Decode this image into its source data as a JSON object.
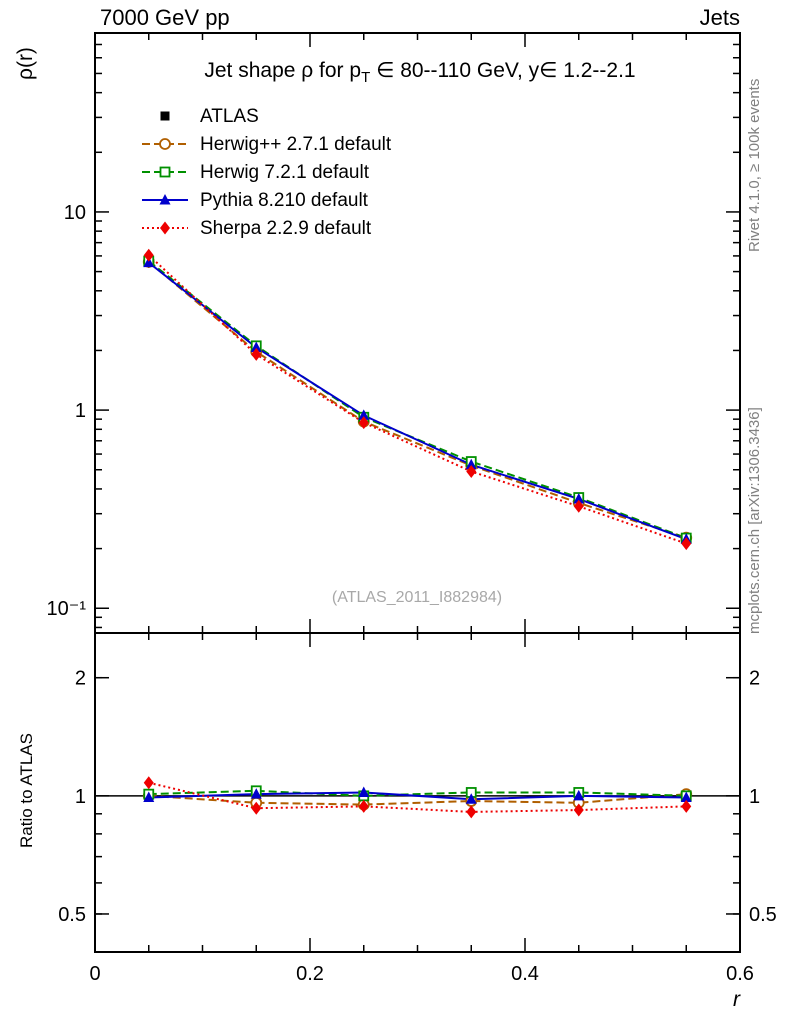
{
  "header": {
    "left": "7000 GeV pp",
    "right": "Jets"
  },
  "side_notes": {
    "rivet": "Rivet 4.1.0, ≥ 100k events",
    "mcplots": "mcplots.cern.ch [arXiv:1306.3436]"
  },
  "watermark": "(ATLAS_2011_I882984)",
  "chart_data": {
    "type": "line",
    "title": "Jet shape ρ for p_T ∈ 80--110 GeV, y∈ 1.2--2.1",
    "title_parts": {
      "prefix": "Jet shape ρ for p",
      "sub": "T",
      "suffix": " ∈ 80--110 GeV, y∈ 1.2--2.1"
    },
    "xlabel": "r",
    "ylabel": "ρ(r)",
    "ratio_ylabel": "Ratio to ATLAS",
    "xlim": [
      0,
      0.6
    ],
    "ylim": [
      0.075,
      80
    ],
    "ratio_ylim": [
      0.4,
      2.6
    ],
    "grid": false,
    "legend_position": "top-left",
    "x": [
      0.05,
      0.15,
      0.25,
      0.35,
      0.45,
      0.55
    ],
    "x_ticks": {
      "values": [
        0,
        0.2,
        0.4,
        0.6
      ],
      "labels": [
        "0",
        "0.2",
        "0.4",
        "0.6"
      ],
      "minor_step": 0.05
    },
    "y_ticks": [
      {
        "value": 10,
        "label": "10"
      },
      {
        "value": 1,
        "label": "1"
      },
      {
        "value": 0.1,
        "label": "10⁻¹"
      }
    ],
    "ratio_y_ticks": [
      {
        "value": 2,
        "label": "2"
      },
      {
        "value": 1,
        "label": "1"
      },
      {
        "value": 0.5,
        "label": "0.5"
      }
    ],
    "series": [
      {
        "name": "ATLAS",
        "color": "#000000",
        "marker": "square-filled",
        "line": "none",
        "error_bars": true,
        "values": [
          5.6,
          2.05,
          0.92,
          0.54,
          0.355,
          0.225
        ],
        "ratio": [
          1.0,
          1.0,
          1.0,
          1.0,
          1.0,
          1.0
        ]
      },
      {
        "name": "Herwig++ 2.7.1 default",
        "color": "#b05f00",
        "marker": "circle-open",
        "line": "dashed",
        "error_bars": false,
        "values": [
          5.6,
          1.97,
          0.875,
          0.525,
          0.34,
          0.227
        ],
        "ratio": [
          1.0,
          0.96,
          0.95,
          0.97,
          0.96,
          1.01
        ]
      },
      {
        "name": "Herwig 7.2.1 default",
        "color": "#009000",
        "marker": "square-open",
        "line": "dashed",
        "error_bars": false,
        "values": [
          5.65,
          2.11,
          0.92,
          0.55,
          0.362,
          0.226
        ],
        "ratio": [
          1.01,
          1.03,
          1.0,
          1.02,
          1.02,
          1.0
        ]
      },
      {
        "name": "Pythia 8.210 default",
        "color": "#0000cc",
        "marker": "triangle-filled",
        "line": "solid",
        "error_bars": false,
        "values": [
          5.55,
          2.07,
          0.94,
          0.53,
          0.356,
          0.223
        ],
        "ratio": [
          0.99,
          1.01,
          1.02,
          0.98,
          1.0,
          0.99
        ]
      },
      {
        "name": "Sherpa 2.2.9 default",
        "color": "#ee0000",
        "marker": "diamond-filled",
        "line": "dotted",
        "error_bars": false,
        "values": [
          6.05,
          1.91,
          0.865,
          0.49,
          0.327,
          0.212
        ],
        "ratio": [
          1.08,
          0.93,
          0.94,
          0.91,
          0.92,
          0.94
        ]
      }
    ]
  }
}
